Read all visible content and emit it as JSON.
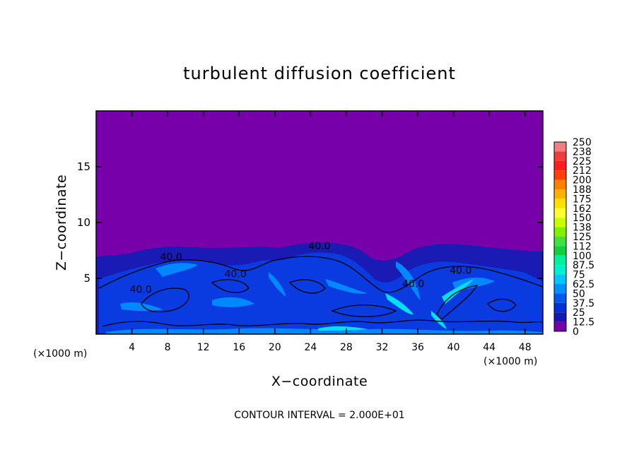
{
  "chart_data": {
    "type": "heatmap",
    "title": "turbulent diffusion coefficient",
    "xlabel": "X−coordinate",
    "ylabel": "Z−coordinate",
    "x_unit_left": "(×1000 m)",
    "x_unit_right": "(×1000 m)",
    "footer": "CONTOUR INTERVAL = 2.000E+01",
    "xlim": [
      0,
      50
    ],
    "ylim": [
      0,
      20
    ],
    "xticks": [
      4,
      8,
      12,
      16,
      20,
      24,
      28,
      32,
      36,
      40,
      44,
      48
    ],
    "yticks": [
      5,
      10,
      15
    ],
    "contour_labels": [
      {
        "text": "40.0",
        "x": 8.4,
        "z": 6.6
      },
      {
        "text": "40.0",
        "x": 25.0,
        "z": 7.6
      },
      {
        "text": "40.0",
        "x": 40.8,
        "z": 5.4
      },
      {
        "text": "40.0",
        "x": 15.6,
        "z": 5.1
      },
      {
        "text": "40.0",
        "x": 35.5,
        "z": 4.2
      },
      {
        "text": "40.0",
        "x": 5.0,
        "z": 3.7
      }
    ],
    "colorbar": {
      "labels": [
        "250",
        "238",
        "225",
        "212",
        "200",
        "188",
        "175",
        "162",
        "150",
        "138",
        "125",
        "112",
        "100",
        "87.5",
        "75",
        "62.5",
        "50",
        "37.5",
        "25",
        "12.5",
        "0"
      ],
      "colors": [
        "#f08080",
        "#f03c3c",
        "#ff1e1e",
        "#ff4000",
        "#ff8000",
        "#ffb000",
        "#ffe000",
        "#ffff30",
        "#c8ff00",
        "#80f000",
        "#40e040",
        "#10d040",
        "#00f0a0",
        "#00f0d0",
        "#00c8ff",
        "#0090ff",
        "#0058f0",
        "#0030d8",
        "#1818b0",
        "#7800a8"
      ]
    },
    "field_colors": {
      "background": "#7800aa",
      "low": "#1a1ab4",
      "mid": "#0a3be0",
      "high": "#0088ff",
      "peak": "#00e0f0"
    }
  }
}
